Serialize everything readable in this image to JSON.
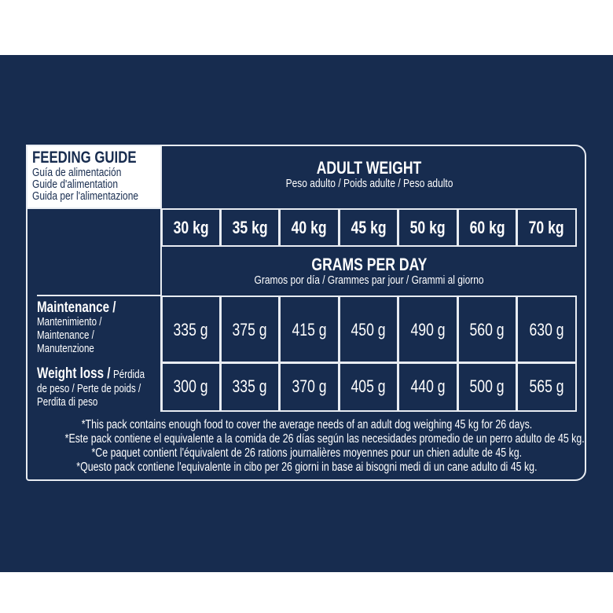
{
  "guide": {
    "title": "FEEDING GUIDE",
    "subtitles": [
      "Guía de alimentación",
      "Guide d'alimentation",
      "Guida per l'alimentazione"
    ]
  },
  "adult_weight": {
    "title": "ADULT WEIGHT",
    "subtitle": "Peso adulto / Poids adulte / Peso adulto"
  },
  "weights": [
    "30 kg",
    "35 kg",
    "40 kg",
    "45 kg",
    "50 kg",
    "60 kg",
    "70 kg"
  ],
  "grams_per_day": {
    "title": "GRAMS PER DAY",
    "subtitle": "Gramos por día / Grammes par jour / Grammi al giorno"
  },
  "rows": [
    {
      "label_bold": "Maintenance /",
      "label_rest": [
        "Mantenimiento /",
        "Maintenance /",
        "Manutenzione"
      ],
      "values": [
        "335 g",
        "375 g",
        "415 g",
        "450 g",
        "490 g",
        "560 g",
        "630 g"
      ]
    },
    {
      "label_bold": "Weight loss /",
      "label_inline": "Pérdida",
      "label_rest": [
        "de peso / Perte de poids /",
        "Perdita di peso"
      ],
      "values": [
        "300 g",
        "335 g",
        "370 g",
        "405 g",
        "440 g",
        "500 g",
        "565 g"
      ]
    }
  ],
  "footnotes": [
    "*This pack contains enough food to cover the average needs of an adult dog weighing 45 kg for 26 days.",
    "*Este pack contiene el equivalente a la comida de 26 días según las necesidades promedio de un perro adulto de 45 kg.",
    "*Ce paquet contient l'équivalent de 26 rations journalières moyennes pour un chien adulte de 45 kg.",
    "*Questo pack contiene l'equivalente in cibo per 26 giorni in base ai bisogni medi di un cane adulto di 45 kg."
  ],
  "colors": {
    "background": "#172c4f",
    "lines": "#e8ecf2",
    "title_text": "#172c4f"
  }
}
